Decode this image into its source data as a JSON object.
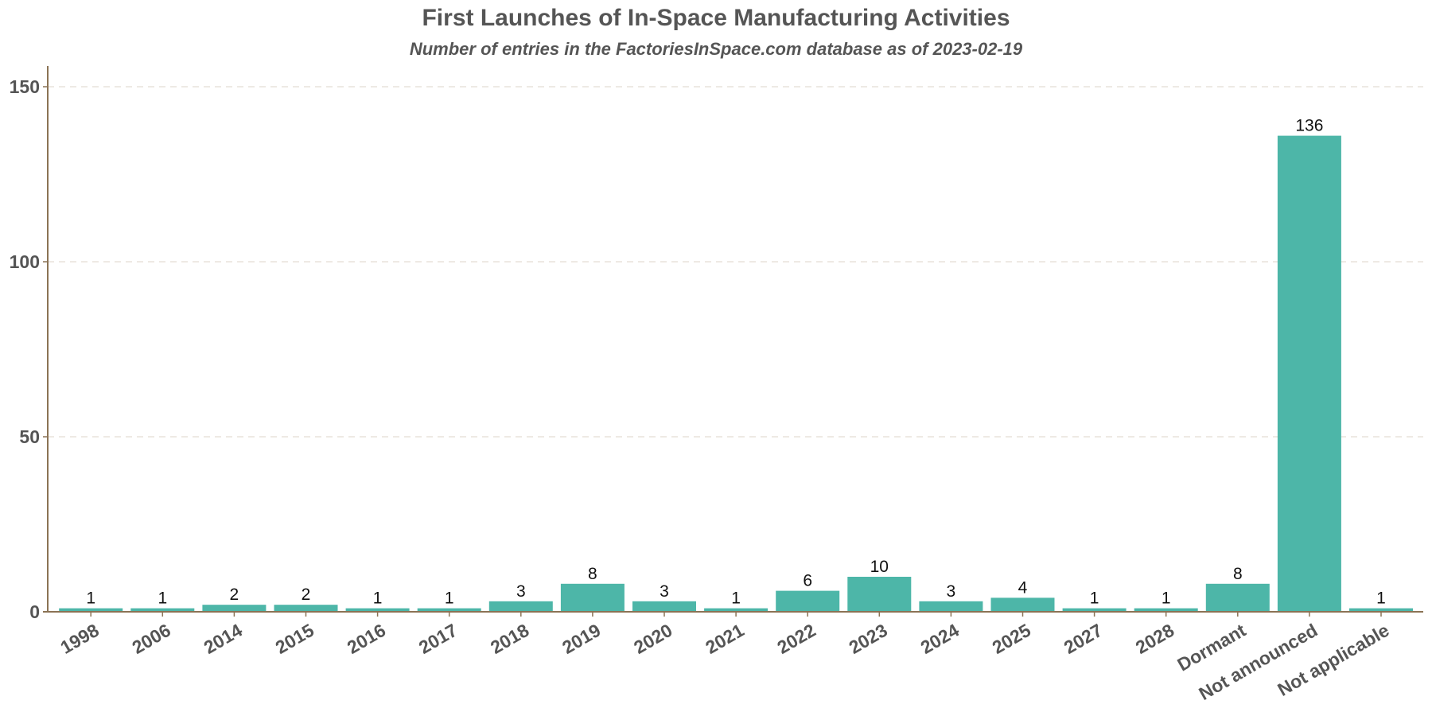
{
  "chart_data": {
    "type": "bar",
    "title": "First Launches of In-Space Manufacturing Activities",
    "subtitle": "Number of entries in the FactoriesInSpace.com database as of 2023-02-19",
    "xlabel": "",
    "ylabel": "",
    "categories": [
      "1998",
      "2006",
      "2014",
      "2015",
      "2016",
      "2017",
      "2018",
      "2019",
      "2020",
      "2021",
      "2022",
      "2023",
      "2024",
      "2025",
      "2027",
      "2028",
      "Dormant",
      "Not announced",
      "Not applicable"
    ],
    "values": [
      1,
      1,
      2,
      2,
      1,
      1,
      3,
      8,
      3,
      1,
      6,
      10,
      3,
      4,
      1,
      1,
      8,
      136,
      1
    ],
    "ylim": [
      0,
      156
    ],
    "yticks": [
      0,
      50,
      100,
      150
    ],
    "grid": "horizontal dashed",
    "legend": "none",
    "colors": {
      "bar": "#4db6a8",
      "axis": "#8b7355",
      "grid": "#e8e4dc",
      "text": "#555555"
    }
  }
}
